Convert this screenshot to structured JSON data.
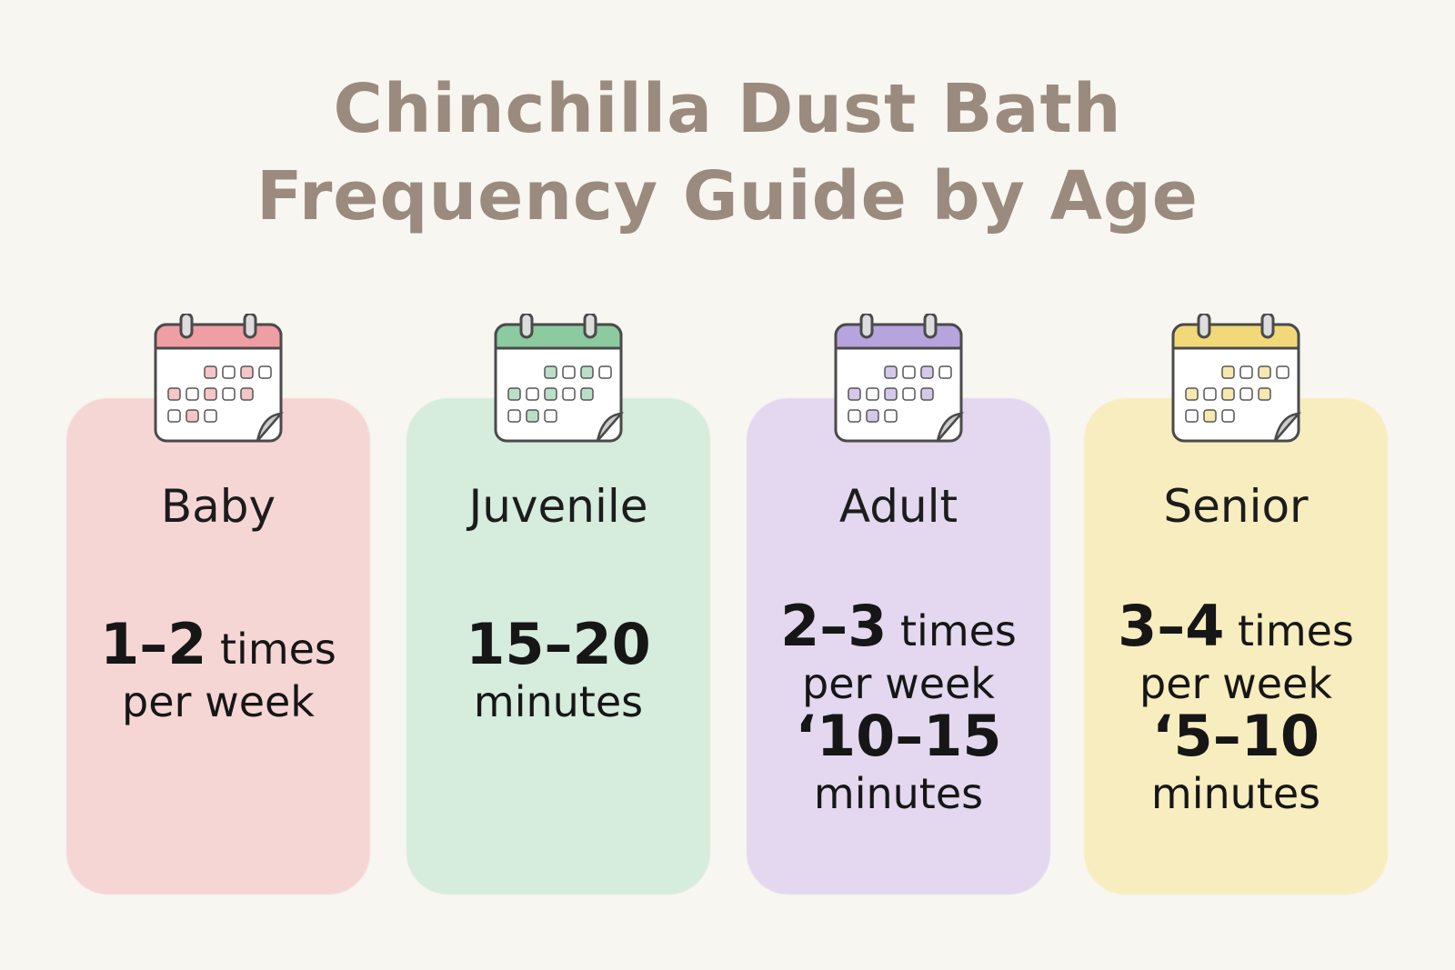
{
  "title": {
    "line1": "Chinchilla Dust Bath",
    "line2": "Frequency Guide by Age"
  },
  "cards": [
    {
      "label": "Baby",
      "color": "#f6d6d4",
      "accent": "#ef9ea3",
      "icon": "calendar-icon",
      "lines": [
        [
          {
            "t": "1–2",
            "b": true
          },
          {
            "t": " times",
            "b": false
          }
        ],
        [
          {
            "t": "per week",
            "b": false
          }
        ]
      ]
    },
    {
      "label": "Juvenile",
      "color": "#d6ecdc",
      "accent": "#8ccaa0",
      "icon": "calendar-icon",
      "lines": [
        [
          {
            "t": "15–20",
            "b": true
          }
        ],
        [
          {
            "t": "minutes",
            "b": false
          }
        ]
      ]
    },
    {
      "label": "Adult",
      "color": "#e3d8ef",
      "accent": "#b7a4de",
      "icon": "calendar-icon",
      "lines": [
        [
          {
            "t": "2–3",
            "b": true
          },
          {
            "t": " times",
            "b": false
          }
        ],
        [
          {
            "t": "per week",
            "b": false
          }
        ],
        [
          {
            "t": "‘10–15",
            "b": true
          }
        ],
        [
          {
            "t": "minutes",
            "b": false
          }
        ]
      ]
    },
    {
      "label": "Senior",
      "color": "#f8edbe",
      "accent": "#f1d97a",
      "icon": "calendar-icon",
      "lines": [
        [
          {
            "t": "3–4",
            "b": true
          },
          {
            "t": " times",
            "b": false
          }
        ],
        [
          {
            "t": "per week",
            "b": false
          }
        ],
        [
          {
            "t": "‘5–10",
            "b": true
          }
        ],
        [
          {
            "t": "minutes",
            "b": false
          }
        ]
      ]
    }
  ]
}
